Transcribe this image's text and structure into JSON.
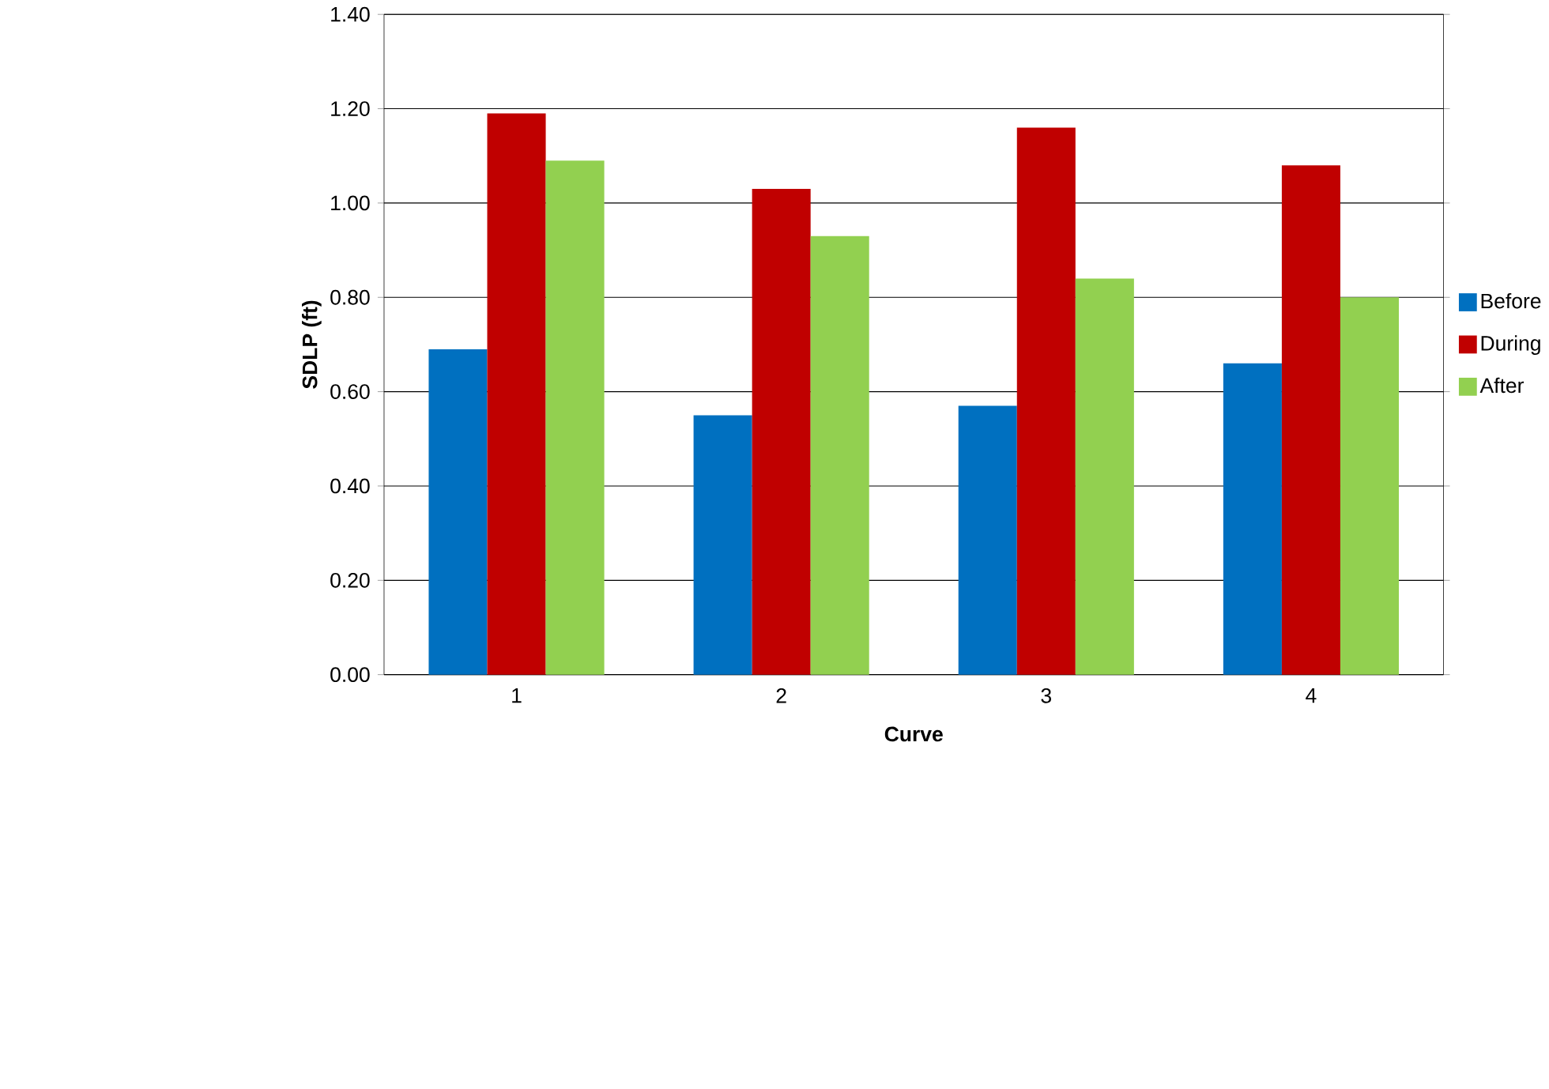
{
  "chart_data": {
    "type": "bar",
    "xlabel": "Curve",
    "ylabel": "SDLP (ft)",
    "categories": [
      "1",
      "2",
      "3",
      "4"
    ],
    "series": [
      {
        "name": "Before",
        "color": "#0070c0",
        "values": [
          0.69,
          0.55,
          0.57,
          0.66
        ]
      },
      {
        "name": "During",
        "color": "#c00000",
        "values": [
          1.19,
          1.03,
          1.16,
          1.08
        ]
      },
      {
        "name": "After",
        "color": "#92d050",
        "values": [
          1.09,
          0.93,
          0.84,
          0.8
        ]
      }
    ],
    "ylim": [
      0,
      1.4
    ],
    "yticks": [
      {
        "value": 0,
        "label": "0.00"
      },
      {
        "value": 0.2,
        "label": "0.20"
      },
      {
        "value": 0.4,
        "label": "0.40"
      },
      {
        "value": 0.6,
        "label": "0.60"
      },
      {
        "value": 0.8,
        "label": "0.80"
      },
      {
        "value": 1.0,
        "label": "1.00"
      },
      {
        "value": 1.2,
        "label": "1.20"
      },
      {
        "value": 1.4,
        "label": "1.40"
      }
    ],
    "grid": "y",
    "legend": "right"
  }
}
